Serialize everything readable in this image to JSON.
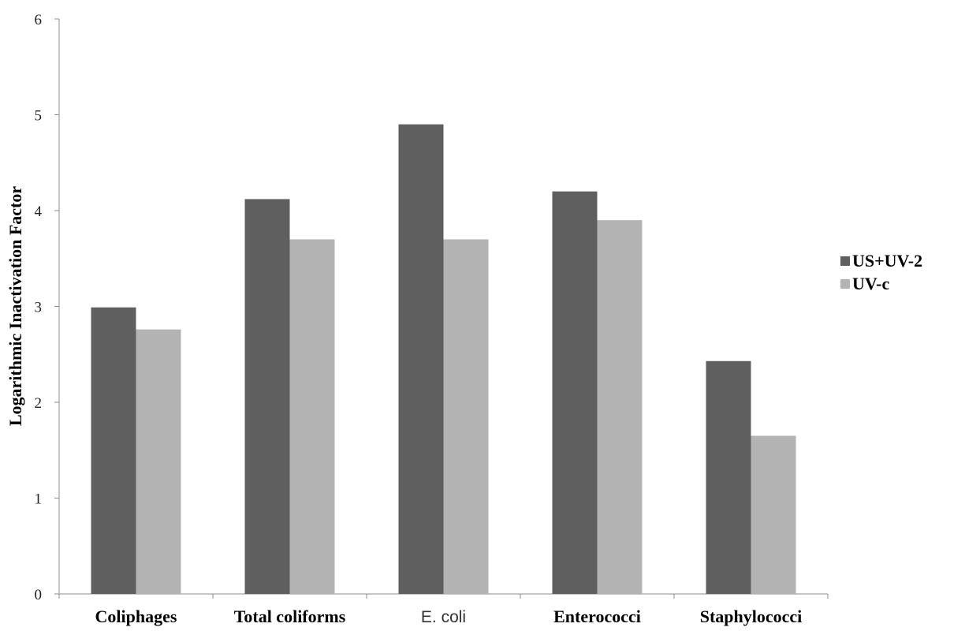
{
  "chart_data": {
    "type": "bar",
    "ylabel": "Logarithmic Inactivation Factor",
    "ylim": [
      0,
      6
    ],
    "yticks": [
      0,
      1,
      2,
      3,
      4,
      5,
      6
    ],
    "grid": false,
    "legend_position": "right",
    "categories": [
      "Coliphages",
      "Total coliforms",
      "E. coli",
      "Enterococci",
      "Staphylococci"
    ],
    "category_bold": [
      true,
      true,
      false,
      true,
      true
    ],
    "series": [
      {
        "name": "US+UV-2",
        "color": "#5f5f5f",
        "values": [
          2.99,
          4.12,
          4.9,
          4.2,
          2.43
        ]
      },
      {
        "name": "UV-c",
        "color": "#b3b3b3",
        "values": [
          2.76,
          3.7,
          3.7,
          3.9,
          1.65
        ]
      }
    ]
  }
}
